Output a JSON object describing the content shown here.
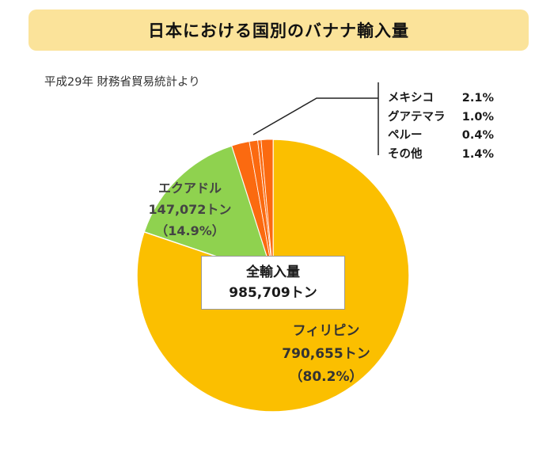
{
  "title": "日本における国別のバナナ輸入量",
  "source": "平成29年 財務省貿易統計より",
  "total": {
    "label": "全輸入量",
    "value": "985,709トン"
  },
  "labels": {
    "philippines": {
      "name": "フィリピン",
      "amount": "790,655トン",
      "pct": "（80.2%）"
    },
    "ecuador": {
      "name": "エクアドル",
      "amount": "147,072トン",
      "pct": "（14.9%）"
    }
  },
  "legend": [
    {
      "name": "メキシコ",
      "pct": "2.1%"
    },
    {
      "name": "グアテマラ",
      "pct": "1.0%"
    },
    {
      "name": "ペルー",
      "pct": "0.4%"
    },
    {
      "name": "その他",
      "pct": "1.4%"
    }
  ],
  "colors": {
    "philippines": "#fbbf00",
    "ecuador": "#8fd24f",
    "others": "#fb6a10",
    "banner": "#fbe39a"
  },
  "chart_data": {
    "type": "pie",
    "title": "日本における国別のバナナ輸入量",
    "unit": "トン",
    "total": 985709,
    "slices": [
      {
        "name": "フィリピン",
        "value": 790655,
        "percent": 80.2,
        "color": "#fbbf00"
      },
      {
        "name": "エクアドル",
        "value": 147072,
        "percent": 14.9,
        "color": "#8fd24f"
      },
      {
        "name": "メキシコ",
        "percent": 2.1,
        "color": "#fb6a10"
      },
      {
        "name": "グアテマラ",
        "percent": 1.0,
        "color": "#fb6a10"
      },
      {
        "name": "ペルー",
        "percent": 0.4,
        "color": "#fb6a10"
      },
      {
        "name": "その他",
        "percent": 1.4,
        "color": "#fb6a10"
      }
    ]
  }
}
